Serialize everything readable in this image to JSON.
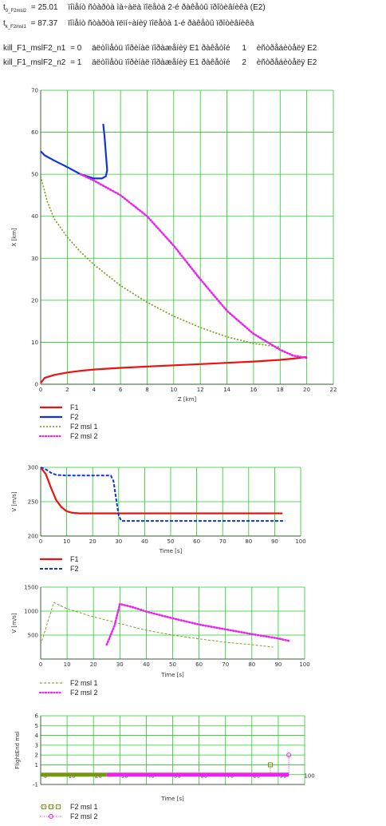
{
  "header": {
    "line1": {
      "sym": "t",
      "sub": "0_F2msl2",
      "eq": "= 25.01",
      "desc": "ïîìåíò ñòàðòà ìà÷àëà ïîëåòà 2-é ðàêåòû ïðîòèâíèêà (E2)"
    },
    "line2": {
      "sym": "t",
      "sub": "k_F2msl1",
      "eq": "= 87.37",
      "desc": "ïîìåíò ñòàðòà ïëïí÷àíèÿ ïîëåòà 1-é ðàêåòû ïðîòèâíèêà"
    },
    "line3": {
      "name": "kill_F1_mslF2_n1",
      "eq": "= 0",
      "desc": "äëòîìåòü ïîðèíàë ïîðàæåíèÿ E1 ðàêåòîé",
      "num": "1",
      "desc2": "èñòðåáèòåëÿ E2"
    },
    "line4": {
      "name": "kill_F1_mslF2_n2",
      "eq": "= 1",
      "desc": "äëòîìåòü ïîðèíàë ïîðàæåíèÿ E1 ðàêåòîé",
      "num": "2",
      "desc2": "èñòðåáèòåëÿ E2"
    }
  },
  "colors": {
    "grid": "#22cc22",
    "F1": "#ee1111",
    "F2": "#1133dd",
    "msl1": "#779911",
    "msl2": "#ee22ee"
  },
  "chart_data": [
    {
      "type": "line",
      "xlabel": "Z [km]",
      "ylabel": "X [km]",
      "xlim": [
        0,
        22
      ],
      "ylim": [
        0,
        70
      ],
      "xticks": [
        0,
        2,
        4,
        6,
        8,
        10,
        12,
        14,
        16,
        18,
        20,
        22
      ],
      "yticks": [
        0,
        10,
        20,
        30,
        40,
        50,
        60,
        70
      ],
      "grid": true,
      "legend": "bottom",
      "series": [
        {
          "name": "F1",
          "style": "F1",
          "points": [
            [
              0,
              0.3
            ],
            [
              0.3,
              1.5
            ],
            [
              1,
              2.2
            ],
            [
              2,
              2.8
            ],
            [
              3,
              3.2
            ],
            [
              4,
              3.5
            ],
            [
              5,
              3.7
            ],
            [
              6,
              3.9
            ],
            [
              8,
              4.2
            ],
            [
              10,
              4.5
            ],
            [
              12,
              4.8
            ],
            [
              14,
              5.1
            ],
            [
              16,
              5.4
            ],
            [
              18,
              5.8
            ],
            [
              19,
              6.1
            ],
            [
              20,
              6.5
            ]
          ]
        },
        {
          "name": "F2",
          "style": "F2",
          "points": [
            [
              0,
              55.5
            ],
            [
              0.3,
              54.5
            ],
            [
              1,
              53.3
            ],
            [
              2,
              51.7
            ],
            [
              3,
              50
            ],
            [
              4,
              49
            ],
            [
              4.6,
              49
            ],
            [
              4.9,
              49.5
            ],
            [
              5,
              51
            ],
            [
              4.9,
              55
            ],
            [
              4.8,
              59
            ],
            [
              4.7,
              62
            ]
          ]
        },
        {
          "name": "F2 msl 1",
          "style": "msl1",
          "points": [
            [
              0,
              49.5
            ],
            [
              0.5,
              43.5
            ],
            [
              1,
              39.5
            ],
            [
              2,
              35
            ],
            [
              3,
              31.5
            ],
            [
              4,
              28.5
            ],
            [
              6,
              23.5
            ],
            [
              8,
              19.5
            ],
            [
              10,
              16.2
            ],
            [
              12,
              13.5
            ],
            [
              14,
              11.3
            ],
            [
              16,
              9.7
            ],
            [
              17,
              9.3
            ],
            [
              18,
              8.8
            ]
          ]
        },
        {
          "name": "F2 msl 2",
          "style": "msl2",
          "points": [
            [
              3,
              50
            ],
            [
              4,
              48.5
            ],
            [
              6,
              45
            ],
            [
              8,
              40
            ],
            [
              10,
              33
            ],
            [
              12,
              25
            ],
            [
              14,
              17.5
            ],
            [
              16,
              12
            ],
            [
              18,
              8.2
            ],
            [
              19,
              6.8
            ],
            [
              20,
              6.3
            ]
          ]
        }
      ]
    },
    {
      "type": "line",
      "xlabel": "Time [s]",
      "ylabel": "V [m/s]",
      "xlim": [
        0,
        100
      ],
      "ylim": [
        200,
        300
      ],
      "xticks": [
        0,
        10,
        20,
        30,
        40,
        50,
        60,
        70,
        80,
        90,
        100
      ],
      "yticks": [
        200,
        250,
        300
      ],
      "grid": true,
      "legend": "bottom",
      "series": [
        {
          "name": "F1",
          "style": "F1",
          "points": [
            [
              0,
              300
            ],
            [
              2,
              290
            ],
            [
              4,
              270
            ],
            [
              6,
              252
            ],
            [
              8,
              242
            ],
            [
              10,
              236
            ],
            [
              12,
              234
            ],
            [
              15,
              233
            ],
            [
              93,
              233
            ]
          ]
        },
        {
          "name": "F2",
          "style": "F2dash",
          "points": [
            [
              0,
              300
            ],
            [
              2,
              297
            ],
            [
              4,
              292
            ],
            [
              6,
              289
            ],
            [
              10,
              288
            ],
            [
              27,
              288
            ],
            [
              28,
              280
            ],
            [
              29,
              255
            ],
            [
              30,
              230
            ],
            [
              31,
              222
            ],
            [
              94,
              222
            ]
          ]
        }
      ]
    },
    {
      "type": "line",
      "xlabel": "Time [s]",
      "ylabel": "V [m/s]",
      "xlim": [
        0,
        100
      ],
      "ylim": [
        0,
        1500
      ],
      "xticks": [
        0,
        10,
        20,
        30,
        40,
        50,
        60,
        70,
        80,
        90,
        100
      ],
      "yticks": [
        500,
        1000,
        1500
      ],
      "grid": true,
      "legend": "bottom",
      "series": [
        {
          "name": "F2 msl 1",
          "style": "msl1thin",
          "points": [
            [
              0,
              300
            ],
            [
              5,
              1180
            ],
            [
              10,
              1050
            ],
            [
              20,
              880
            ],
            [
              30,
              740
            ],
            [
              40,
              600
            ],
            [
              50,
              500
            ],
            [
              60,
              420
            ],
            [
              70,
              350
            ],
            [
              80,
              300
            ],
            [
              88,
              250
            ]
          ]
        },
        {
          "name": "F2 msl 2",
          "style": "msl2",
          "points": [
            [
              25,
              300
            ],
            [
              28,
              700
            ],
            [
              30,
              1150
            ],
            [
              35,
              1080
            ],
            [
              40,
              990
            ],
            [
              50,
              850
            ],
            [
              60,
              720
            ],
            [
              70,
              620
            ],
            [
              80,
              520
            ],
            [
              90,
              430
            ],
            [
              94,
              380
            ]
          ]
        }
      ]
    },
    {
      "type": "scatter",
      "xlabel": "Time [s]",
      "ylabel": "FlightEnd msl",
      "xlim": [
        0,
        100
      ],
      "ylim": [
        -1,
        6
      ],
      "xticks": [
        0,
        10,
        20,
        30,
        40,
        50,
        60,
        70,
        80,
        90,
        100
      ],
      "yticks": [
        -1,
        1,
        2,
        3,
        4,
        5,
        6
      ],
      "grid": true,
      "legend": "bottom",
      "series": [
        {
          "name": "F2 msl 1",
          "style": "mk1",
          "points": [
            [
              0,
              0
            ],
            [
              25,
              0
            ],
            [
              87,
              0
            ],
            [
              87,
              1
            ]
          ]
        },
        {
          "name": "F2 msl 2",
          "style": "mk2",
          "points": [
            [
              25,
              0
            ],
            [
              94,
              0
            ],
            [
              94,
              2
            ]
          ]
        }
      ]
    }
  ]
}
